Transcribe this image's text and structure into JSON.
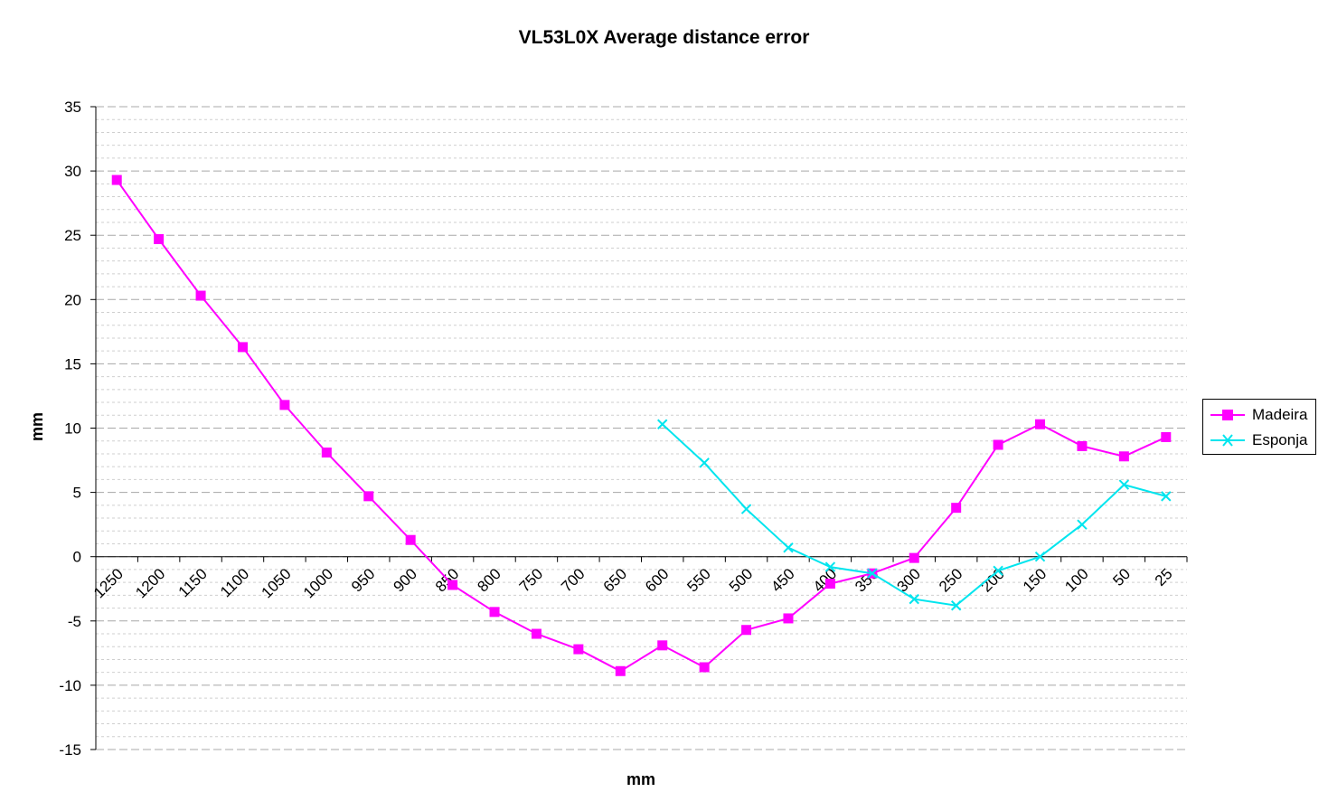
{
  "chart_data": {
    "type": "line",
    "title": "VL53L0X Average distance error",
    "xlabel": "mm",
    "ylabel": "mm",
    "ylim": [
      -15,
      35
    ],
    "yticks": [
      -15,
      -10,
      -5,
      0,
      5,
      10,
      15,
      20,
      25,
      30,
      35
    ],
    "y_minor_step": 1,
    "grid": "horizontal dashed",
    "legend_position": "right",
    "categories": [
      "1250",
      "1200",
      "1150",
      "1100",
      "1050",
      "1000",
      "950",
      "900",
      "850",
      "800",
      "750",
      "700",
      "650",
      "600",
      "550",
      "500",
      "450",
      "400",
      "350",
      "300",
      "250",
      "200",
      "150",
      "100",
      "50",
      "25"
    ],
    "series": [
      {
        "name": "Madeira",
        "color": "#ff00ff",
        "marker": "square",
        "values": [
          29.3,
          24.7,
          20.3,
          16.3,
          11.8,
          8.1,
          4.7,
          1.3,
          -2.2,
          -4.3,
          -6.0,
          -7.2,
          -8.9,
          -6.9,
          -8.6,
          -5.7,
          -4.8,
          -2.1,
          -1.3,
          -0.1,
          3.8,
          8.7,
          10.3,
          8.6,
          7.8,
          9.3
        ]
      },
      {
        "name": "Esponja",
        "color": "#00e5ee",
        "marker": "x",
        "values": [
          null,
          null,
          null,
          null,
          null,
          null,
          null,
          null,
          null,
          null,
          null,
          null,
          null,
          10.3,
          7.3,
          3.7,
          0.7,
          -0.8,
          -1.3,
          -3.3,
          -3.8,
          -1.1,
          0.0,
          2.5,
          5.6,
          4.7
        ]
      }
    ]
  }
}
